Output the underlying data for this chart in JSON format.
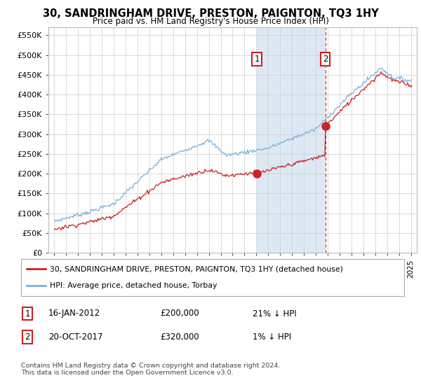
{
  "title": "30, SANDRINGHAM DRIVE, PRESTON, PAIGNTON, TQ3 1HY",
  "subtitle": "Price paid vs. HM Land Registry's House Price Index (HPI)",
  "legend_entry1": "30, SANDRINGHAM DRIVE, PRESTON, PAIGNTON, TQ3 1HY (detached house)",
  "legend_entry2": "HPI: Average price, detached house, Torbay",
  "sale1_date": "16-JAN-2012",
  "sale1_price": "£200,000",
  "sale1_hpi": "21% ↓ HPI",
  "sale2_date": "20-OCT-2017",
  "sale2_price": "£320,000",
  "sale2_hpi": "1% ↓ HPI",
  "footer": "Contains HM Land Registry data © Crown copyright and database right 2024.\nThis data is licensed under the Open Government Licence v3.0.",
  "hpi_color": "#7ab0d8",
  "price_color": "#cc2222",
  "shade_color": "#dce9f5",
  "marker1_x": 2012.04,
  "marker1_y": 200000,
  "marker2_x": 2017.8,
  "marker2_y": 320000,
  "ylim": [
    0,
    570000
  ],
  "xlim": [
    1994.5,
    2025.5
  ],
  "yticks": [
    0,
    50000,
    100000,
    150000,
    200000,
    250000,
    300000,
    350000,
    400000,
    450000,
    500000,
    550000
  ],
  "background_color": "#ffffff",
  "grid_color": "#cccccc"
}
